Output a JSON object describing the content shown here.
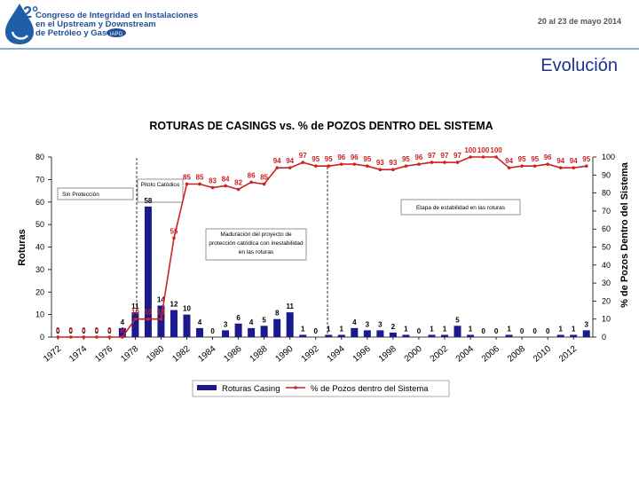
{
  "header": {
    "badge": "2°",
    "congress": [
      "Congreso de Integridad en Instalaciones",
      "en el Upstream y Downstream",
      "de Petróleo y Gas"
    ],
    "org": "IAPG",
    "date": "20 al 23 de mayo 2014"
  },
  "slide_title": "Evolución",
  "chart_data": {
    "type": "bar_line",
    "title": "ROTURAS DE CASINGS vs. % de POZOS DENTRO DEL SISTEMA",
    "y_label": "Roturas",
    "y2_label": "% de Pozos Dentro del Sistema",
    "x": [
      1972,
      1973,
      1974,
      1975,
      1976,
      1977,
      1978,
      1979,
      1980,
      1981,
      1982,
      1983,
      1984,
      1985,
      1986,
      1987,
      1988,
      1989,
      1990,
      1991,
      1992,
      1993,
      1994,
      1995,
      1996,
      1997,
      1998,
      1999,
      2000,
      2001,
      2002,
      2003,
      2004,
      2005,
      2006,
      2007,
      2008,
      2009,
      2010,
      2011,
      2012,
      2013
    ],
    "xlim": [
      1971.5,
      2013.5
    ],
    "xticks": [
      1972,
      1974,
      1976,
      1978,
      1980,
      1982,
      1984,
      1986,
      1988,
      1990,
      1992,
      1994,
      1996,
      1998,
      2000,
      2002,
      2004,
      2006,
      2008,
      2010,
      2012
    ],
    "ylim": [
      0,
      80
    ],
    "yticks": [
      0,
      10,
      20,
      30,
      40,
      50,
      60,
      70,
      80
    ],
    "y2lim": [
      0,
      100
    ],
    "y2ticks": [
      0,
      10,
      20,
      30,
      40,
      50,
      60,
      70,
      80,
      90,
      100
    ],
    "series": [
      {
        "name": "Roturas Casing",
        "color": "#1a1a8c",
        "kind": "bar",
        "values": [
          0,
          0,
          0,
          0,
          0,
          4,
          11,
          58,
          14,
          12,
          10,
          4,
          0,
          3,
          6,
          4,
          5,
          8,
          11,
          1,
          0,
          1,
          1,
          4,
          3,
          3,
          2,
          1,
          0,
          1,
          1,
          5,
          1,
          0,
          0,
          1,
          0,
          0,
          0,
          1,
          1,
          3
        ]
      },
      {
        "name": "% de Pozos dentro del Sistema",
        "color": "#cc2222",
        "kind": "line",
        "axis": "y2",
        "values": [
          0,
          0,
          0,
          0,
          0,
          0,
          10,
          10,
          10,
          55,
          85,
          85,
          83,
          84,
          82,
          86,
          85,
          94,
          94,
          97,
          95,
          95,
          96,
          96,
          95,
          93,
          93,
          95,
          96,
          97,
          97,
          97,
          100,
          100,
          100,
          94,
          95,
          95,
          96,
          94,
          94,
          95
        ]
      }
    ],
    "annotations": [
      "Sin Protección",
      "Piloto Catódico",
      "Maduración del proyecto de protección catódica con inestabilidad en las roturas",
      "Etapa de estabilidad en las roturas"
    ]
  }
}
